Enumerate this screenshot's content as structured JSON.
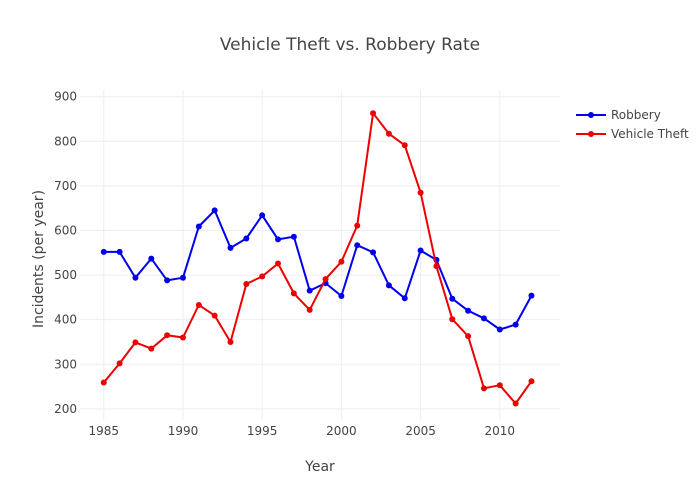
{
  "chart_data": {
    "type": "line",
    "title": "Vehicle Theft vs. Robbery Rate",
    "xlabel": "Year",
    "ylabel": "Incidents (per year)",
    "xlim": [
      1983.5,
      2013.8
    ],
    "ylim": [
      175,
      915
    ],
    "x_ticks": [
      1985,
      1990,
      1995,
      2000,
      2005,
      2010
    ],
    "y_ticks": [
      200,
      300,
      400,
      500,
      600,
      700,
      800,
      900
    ],
    "grid": true,
    "legend_position": "top-right",
    "x": [
      1985,
      1986,
      1987,
      1988,
      1989,
      1990,
      1991,
      1992,
      1993,
      1994,
      1995,
      1996,
      1997,
      1998,
      1999,
      2000,
      2001,
      2002,
      2003,
      2004,
      2005,
      2006,
      2007,
      2008,
      2009,
      2010,
      2011,
      2012
    ],
    "series": [
      {
        "name": "Robbery",
        "color": "#0000ee",
        "values": [
          552,
          552,
          494,
          537,
          488,
          494,
          609,
          645,
          561,
          582,
          634,
          580,
          586,
          465,
          482,
          453,
          567,
          551,
          477,
          448,
          555,
          534,
          447,
          420,
          403,
          378,
          389,
          454
        ]
      },
      {
        "name": "Vehicle Theft",
        "color": "#ee0000",
        "values": [
          259,
          302,
          349,
          335,
          365,
          360,
          433,
          409,
          350,
          480,
          497,
          526,
          459,
          422,
          491,
          530,
          611,
          863,
          817,
          791,
          685,
          520,
          401,
          363,
          246,
          253,
          212,
          262
        ]
      }
    ]
  }
}
